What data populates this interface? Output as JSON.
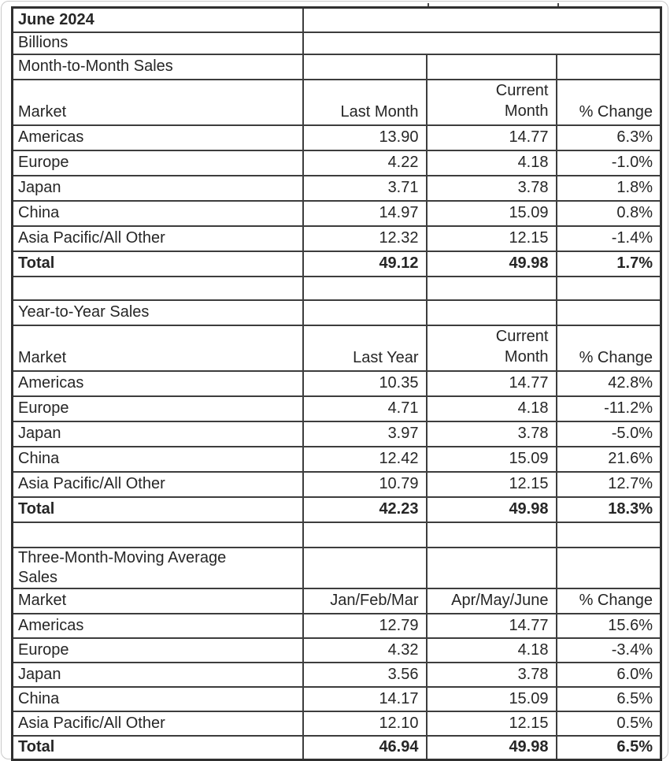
{
  "meta": {
    "period": "June 2024",
    "units": "Billions"
  },
  "sections": [
    {
      "title": "Month-to-Month Sales",
      "columns": [
        "Market",
        "Last Month",
        "Current Month",
        "% Change"
      ],
      "rows": [
        [
          "Americas",
          "13.90",
          "14.77",
          "6.3%"
        ],
        [
          "Europe",
          "4.22",
          "4.18",
          "-1.0%"
        ],
        [
          "Japan",
          "3.71",
          "3.78",
          "1.8%"
        ],
        [
          "China",
          "14.97",
          "15.09",
          "0.8%"
        ],
        [
          "Asia Pacific/All Other",
          "12.32",
          "12.15",
          "-1.4%"
        ],
        [
          "Total",
          "49.12",
          "49.98",
          "1.7%"
        ]
      ]
    },
    {
      "title": "Year-to-Year Sales",
      "columns": [
        "Market",
        "Last Year",
        "Current Month",
        "% Change"
      ],
      "rows": [
        [
          "Americas",
          "10.35",
          "14.77",
          "42.8%"
        ],
        [
          "Europe",
          "4.71",
          "4.18",
          "-11.2%"
        ],
        [
          "Japan",
          "3.97",
          "3.78",
          "-5.0%"
        ],
        [
          "China",
          "12.42",
          "15.09",
          "21.6%"
        ],
        [
          "Asia Pacific/All Other",
          "10.79",
          "12.15",
          "12.7%"
        ],
        [
          "Total",
          "42.23",
          "49.98",
          "18.3%"
        ]
      ]
    },
    {
      "title": "Three-Month-Moving Average Sales",
      "columns": [
        "Market",
        "Jan/Feb/Mar",
        "Apr/May/June",
        "% Change"
      ],
      "rows": [
        [
          "Americas",
          "12.79",
          "14.77",
          "15.6%"
        ],
        [
          "Europe",
          "4.32",
          "4.18",
          "-3.4%"
        ],
        [
          "Japan",
          "3.56",
          "3.78",
          "6.0%"
        ],
        [
          "China",
          "14.17",
          "15.09",
          "6.5%"
        ],
        [
          "Asia Pacific/All Other",
          "12.10",
          "12.15",
          "0.5%"
        ],
        [
          "Total",
          "46.94",
          "49.98",
          "6.5%"
        ]
      ]
    }
  ]
}
